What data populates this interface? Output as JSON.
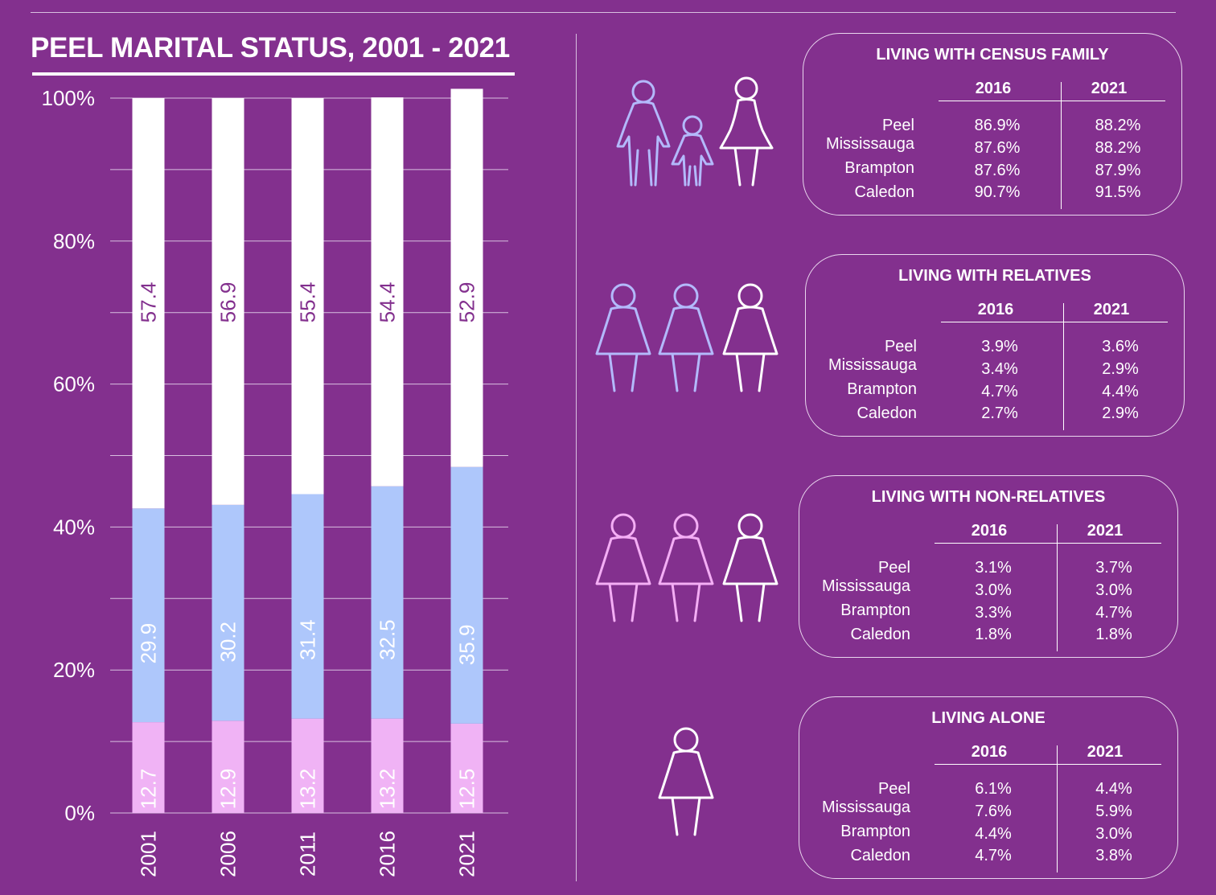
{
  "page": {
    "background": "#83308e"
  },
  "chart_data": {
    "type": "bar",
    "stacked": true,
    "title": "PEEL MARITAL STATUS, 2001 - 2021",
    "categories": [
      "2001",
      "2006",
      "2011",
      "2016",
      "2021"
    ],
    "yticks": [
      "0%",
      "20%",
      "40%",
      "60%",
      "80%",
      "100%"
    ],
    "ylim": [
      0,
      100
    ],
    "series": [
      {
        "name": "bottom segment",
        "color": "#f0b3f5",
        "label_color": "#ffffff",
        "values": [
          12.7,
          12.9,
          13.2,
          13.2,
          12.5
        ],
        "labels": [
          "12.7",
          "12.9",
          "13.2",
          "13.2",
          "12.5"
        ]
      },
      {
        "name": "middle segment",
        "color": "#aec7fb",
        "label_color": "#ffffff",
        "values": [
          29.9,
          30.2,
          31.4,
          32.5,
          35.9
        ],
        "labels": [
          "29.9",
          "30.2",
          "31.4",
          "32.5",
          "35.9"
        ]
      },
      {
        "name": "top segment",
        "color": "#ffffff",
        "label_color": "#83308e",
        "values": [
          57.4,
          56.9,
          55.4,
          54.4,
          52.9
        ],
        "labels": [
          "57.4",
          "56.9",
          "55.4",
          "54.4",
          "52.9"
        ]
      }
    ]
  },
  "panels": [
    {
      "title": "LIVING WITH CENSUS FAMILY",
      "years": [
        "2016",
        "2021"
      ],
      "rows": [
        {
          "label": "Peel",
          "v2016": "86.9%",
          "v2021": "88.2%"
        },
        {
          "label": "Mississauga",
          "v2016": "87.6%",
          "v2021": "88.2%"
        },
        {
          "label": "Brampton",
          "v2016": "87.6%",
          "v2021": "87.9%"
        },
        {
          "label": "Caledon",
          "v2016": "90.7%",
          "v2021": "91.5%"
        }
      ]
    },
    {
      "title": "LIVING WITH RELATIVES",
      "years": [
        "2016",
        "2021"
      ],
      "rows": [
        {
          "label": "Peel",
          "v2016": "3.9%",
          "v2021": "3.6%"
        },
        {
          "label": "Mississauga",
          "v2016": "3.4%",
          "v2021": "2.9%"
        },
        {
          "label": "Brampton",
          "v2016": "4.7%",
          "v2021": "4.4%"
        },
        {
          "label": "Caledon",
          "v2016": "2.7%",
          "v2021": "2.9%"
        }
      ]
    },
    {
      "title": "LIVING WITH NON-RELATIVES",
      "years": [
        "2016",
        "2021"
      ],
      "rows": [
        {
          "label": "Peel",
          "v2016": "3.1%",
          "v2021": "3.7%"
        },
        {
          "label": "Mississauga",
          "v2016": "3.0%",
          "v2021": "3.0%"
        },
        {
          "label": "Brampton",
          "v2016": "3.3%",
          "v2021": "4.7%"
        },
        {
          "label": "Caledon",
          "v2016": "1.8%",
          "v2021": "1.8%"
        }
      ]
    },
    {
      "title": "LIVING ALONE",
      "years": [
        "2016",
        "2021"
      ],
      "rows": [
        {
          "label": "Peel",
          "v2016": "6.1%",
          "v2021": "4.4%"
        },
        {
          "label": "Mississauga",
          "v2016": "7.6%",
          "v2021": "5.9%"
        },
        {
          "label": "Brampton",
          "v2016": "4.4%",
          "v2021": "3.0%"
        },
        {
          "label": "Caledon",
          "v2016": "4.7%",
          "v2021": "3.8%"
        }
      ]
    }
  ],
  "icons": {
    "family": {
      "name": "family-icon",
      "colors": [
        "#b3b9fb",
        "#b3b9fb",
        "#ffffff"
      ]
    },
    "relatives": {
      "name": "relatives-icon",
      "colors": [
        "#b3b9fb",
        "#b3b9fb",
        "#ffffff"
      ]
    },
    "non_relatives": {
      "name": "non-relatives-icon",
      "colors": [
        "#f4aef5",
        "#f4aef5",
        "#ffffff"
      ]
    },
    "alone": {
      "name": "person-alone-icon",
      "colors": [
        "#ffffff"
      ]
    }
  }
}
